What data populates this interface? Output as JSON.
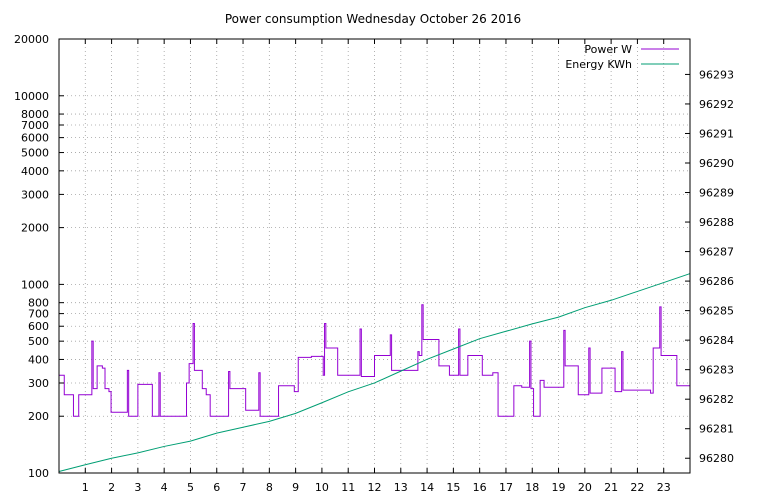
{
  "chart_data": {
    "type": "line",
    "title": "Power consumption Wednesday October 26 2016",
    "xlabel": "",
    "ylabel": "",
    "y2label": "",
    "xlim": [
      0,
      24
    ],
    "ylim": [
      100,
      20000
    ],
    "y_scale": "log",
    "y2lim": [
      96279.5,
      96294.2
    ],
    "grid": true,
    "legend_position": "top-right",
    "x_ticks": [
      "1",
      "2",
      "3",
      "4",
      "5",
      "6",
      "7",
      "8",
      "9",
      "10",
      "11",
      "12",
      "13",
      "14",
      "15",
      "16",
      "17",
      "18",
      "19",
      "20",
      "21",
      "22",
      "23"
    ],
    "y_ticks": [
      {
        "value": 100,
        "label": "100"
      },
      {
        "value": 200,
        "label": "200"
      },
      {
        "value": 300,
        "label": "300"
      },
      {
        "value": 400,
        "label": "400"
      },
      {
        "value": 500,
        "label": "500"
      },
      {
        "value": 600,
        "label": "600"
      },
      {
        "value": 700,
        "label": "700"
      },
      {
        "value": 800,
        "label": "800"
      },
      {
        "value": 1000,
        "label": "1000"
      },
      {
        "value": 2000,
        "label": "2000"
      },
      {
        "value": 3000,
        "label": "3000"
      },
      {
        "value": 4000,
        "label": "4000"
      },
      {
        "value": 5000,
        "label": "5000"
      },
      {
        "value": 6000,
        "label": "6000"
      },
      {
        "value": 7000,
        "label": "7000"
      },
      {
        "value": 8000,
        "label": "8000"
      },
      {
        "value": 10000,
        "label": "10000"
      },
      {
        "value": 20000,
        "label": "20000"
      }
    ],
    "y2_ticks": [
      "96280",
      "96281",
      "96282",
      "96283",
      "96284",
      "96285",
      "96286",
      "96287",
      "96288",
      "96289",
      "96290",
      "96291",
      "96292",
      "96293"
    ],
    "series": [
      {
        "name": "Power W",
        "color": "#9400d3",
        "axis": "y",
        "style": "steps",
        "points": [
          [
            0.0,
            330
          ],
          [
            0.2,
            260
          ],
          [
            0.55,
            200
          ],
          [
            0.75,
            260
          ],
          [
            1.25,
            500
          ],
          [
            1.3,
            280
          ],
          [
            1.45,
            370
          ],
          [
            1.65,
            360
          ],
          [
            1.75,
            280
          ],
          [
            1.9,
            270
          ],
          [
            1.98,
            210
          ],
          [
            2.6,
            350
          ],
          [
            2.65,
            200
          ],
          [
            3.0,
            295
          ],
          [
            3.55,
            200
          ],
          [
            3.8,
            340
          ],
          [
            3.85,
            200
          ],
          [
            4.85,
            300
          ],
          [
            4.95,
            380
          ],
          [
            5.1,
            620
          ],
          [
            5.15,
            350
          ],
          [
            5.45,
            280
          ],
          [
            5.6,
            260
          ],
          [
            5.75,
            200
          ],
          [
            6.35,
            200
          ],
          [
            6.45,
            345
          ],
          [
            6.5,
            280
          ],
          [
            7.1,
            215
          ],
          [
            7.6,
            340
          ],
          [
            7.65,
            200
          ],
          [
            8.35,
            290
          ],
          [
            8.95,
            270
          ],
          [
            9.1,
            410
          ],
          [
            9.6,
            415
          ],
          [
            10.05,
            330
          ],
          [
            10.1,
            620
          ],
          [
            10.15,
            460
          ],
          [
            10.6,
            330
          ],
          [
            11.45,
            580
          ],
          [
            11.5,
            325
          ],
          [
            12.0,
            420
          ],
          [
            12.6,
            540
          ],
          [
            12.65,
            350
          ],
          [
            13.65,
            440
          ],
          [
            13.7,
            420
          ],
          [
            13.8,
            780
          ],
          [
            13.85,
            510
          ],
          [
            14.45,
            370
          ],
          [
            14.85,
            330
          ],
          [
            15.2,
            580
          ],
          [
            15.25,
            330
          ],
          [
            15.55,
            420
          ],
          [
            16.1,
            330
          ],
          [
            16.5,
            340
          ],
          [
            16.7,
            200
          ],
          [
            17.3,
            290
          ],
          [
            17.6,
            285
          ],
          [
            17.9,
            500
          ],
          [
            17.95,
            280
          ],
          [
            18.05,
            200
          ],
          [
            18.3,
            310
          ],
          [
            18.45,
            285
          ],
          [
            19.2,
            570
          ],
          [
            19.25,
            370
          ],
          [
            19.75,
            260
          ],
          [
            20.15,
            460
          ],
          [
            20.2,
            265
          ],
          [
            20.65,
            360
          ],
          [
            21.15,
            270
          ],
          [
            21.4,
            440
          ],
          [
            21.45,
            275
          ],
          [
            22.5,
            265
          ],
          [
            22.6,
            460
          ],
          [
            22.85,
            760
          ],
          [
            22.9,
            420
          ],
          [
            23.5,
            290
          ],
          [
            23.99,
            290
          ]
        ]
      },
      {
        "name": "Energy KWh",
        "color": "#009e73",
        "axis": "y2",
        "style": "line",
        "points": [
          [
            0.0,
            96279.55
          ],
          [
            1.0,
            96279.78
          ],
          [
            2.0,
            96280.0
          ],
          [
            3.0,
            96280.18
          ],
          [
            4.0,
            96280.4
          ],
          [
            5.0,
            96280.58
          ],
          [
            6.0,
            96280.85
          ],
          [
            7.0,
            96281.05
          ],
          [
            8.0,
            96281.25
          ],
          [
            9.0,
            96281.52
          ],
          [
            10.0,
            96281.88
          ],
          [
            11.0,
            96282.25
          ],
          [
            12.0,
            96282.55
          ],
          [
            13.0,
            96282.95
          ],
          [
            14.0,
            96283.35
          ],
          [
            15.0,
            96283.7
          ],
          [
            16.0,
            96284.05
          ],
          [
            17.0,
            96284.3
          ],
          [
            18.0,
            96284.55
          ],
          [
            19.0,
            96284.78
          ],
          [
            20.0,
            96285.1
          ],
          [
            21.0,
            96285.35
          ],
          [
            22.0,
            96285.65
          ],
          [
            23.0,
            96285.95
          ],
          [
            23.99,
            96286.25
          ]
        ]
      }
    ]
  }
}
